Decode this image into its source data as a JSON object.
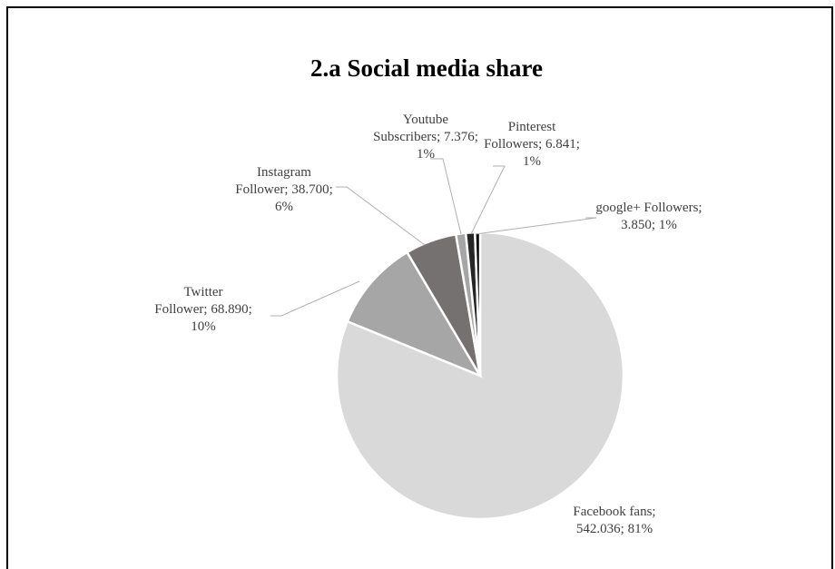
{
  "chart_data": {
    "type": "pie",
    "title": "2.a Social media share",
    "slices": [
      {
        "name": "Facebook fans",
        "value": 542036,
        "display": "542.036",
        "percent": "81%",
        "color": "#d9d9d9",
        "label_lines": [
          "Facebook fans;",
          "542.036; 81%"
        ]
      },
      {
        "name": "Twitter Follower",
        "value": 68890,
        "display": "68.890",
        "percent": "10%",
        "color": "#a6a6a6",
        "label_lines": [
          "Twitter",
          "Follower; 68.890;",
          "10%"
        ]
      },
      {
        "name": "Instagram Follower",
        "value": 38700,
        "display": "38.700",
        "percent": "6%",
        "color": "#767171",
        "label_lines": [
          "Instagram",
          "Follower; 38.700;",
          "6%"
        ]
      },
      {
        "name": "Youtube Subscribers",
        "value": 7376,
        "display": "7.376",
        "percent": "1%",
        "color": "#a6a6a6",
        "label_lines": [
          "Youtube",
          "Subscribers; 7.376;",
          "1%"
        ]
      },
      {
        "name": "Pinterest Followers",
        "value": 6841,
        "display": "6.841",
        "percent": "1%",
        "color": "#262626",
        "label_lines": [
          "Pinterest",
          "Followers; 6.841;",
          "1%"
        ]
      },
      {
        "name": "google+ Followers",
        "value": 3850,
        "display": "3.850",
        "percent": "1%",
        "color": "#000000",
        "label_lines": [
          "google+ Followers;",
          "3.850; 1%"
        ]
      }
    ],
    "legend": "none"
  }
}
